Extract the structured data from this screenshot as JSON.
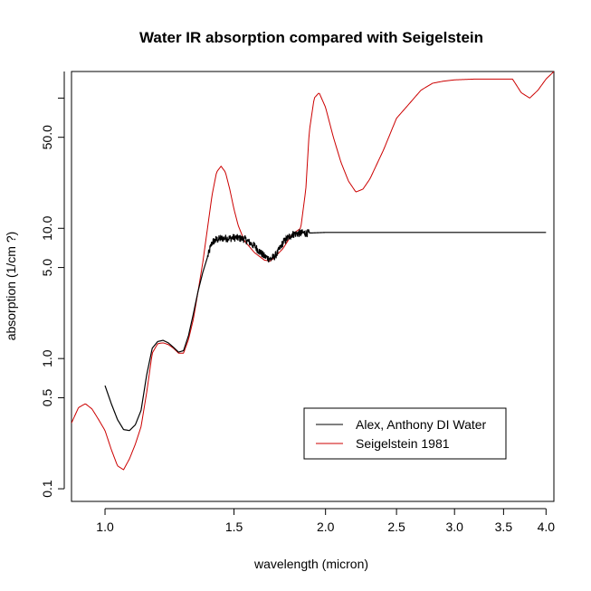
{
  "chart_data": {
    "type": "line",
    "title": "Water IR absorption compared with Seigelstein",
    "xlabel": "wavelength (micron)",
    "ylabel": "absorption (1/cm ?)",
    "x_scale": "log",
    "y_scale": "log",
    "xlim": [
      0.9,
      4.1
    ],
    "ylim": [
      0.08,
      160
    ],
    "x_ticks": [
      1.0,
      1.5,
      2.0,
      2.5,
      3.0,
      3.5,
      4.0
    ],
    "x_tick_labels": [
      "1.0",
      "1.5",
      "2.0",
      "2.5",
      "3.0",
      "3.5",
      "4.0"
    ],
    "y_ticks": [
      0.1,
      0.5,
      1.0,
      5.0,
      10.0,
      50.0
    ],
    "y_tick_labels": [
      "0.1",
      "0.5",
      "1.0",
      "5.0",
      "10.0",
      "50.0"
    ],
    "grid": false,
    "legend_position": "bottom-right",
    "series": [
      {
        "name": "Alex, Anthony DI Water",
        "color": "#000000",
        "noisy_from": 1.38,
        "x": [
          1.0,
          1.02,
          1.04,
          1.06,
          1.08,
          1.1,
          1.12,
          1.14,
          1.16,
          1.18,
          1.2,
          1.22,
          1.24,
          1.26,
          1.28,
          1.3,
          1.32,
          1.34,
          1.36,
          1.38,
          1.4,
          1.42,
          1.45,
          1.48,
          1.5,
          1.55,
          1.6,
          1.65,
          1.68,
          1.7,
          1.72,
          1.75,
          1.8,
          1.85,
          1.9,
          2.0,
          2.2,
          2.5,
          3.0,
          3.5,
          4.0
        ],
        "y": [
          0.62,
          0.45,
          0.34,
          0.285,
          0.28,
          0.31,
          0.4,
          0.75,
          1.2,
          1.35,
          1.38,
          1.32,
          1.22,
          1.12,
          1.15,
          1.5,
          2.2,
          3.3,
          4.6,
          6.0,
          7.8,
          8.2,
          8.4,
          8.4,
          8.5,
          8.3,
          7.3,
          6.1,
          5.8,
          6.0,
          6.5,
          7.8,
          9.0,
          9.2,
          9.2,
          9.3,
          9.3,
          9.3,
          9.3,
          9.3,
          9.3
        ]
      },
      {
        "name": "Seigelstein 1981",
        "color": "#cc0000",
        "x": [
          0.9,
          0.92,
          0.94,
          0.96,
          0.98,
          1.0,
          1.02,
          1.04,
          1.06,
          1.08,
          1.1,
          1.12,
          1.14,
          1.16,
          1.18,
          1.2,
          1.22,
          1.24,
          1.26,
          1.28,
          1.3,
          1.32,
          1.34,
          1.36,
          1.38,
          1.4,
          1.42,
          1.44,
          1.46,
          1.48,
          1.5,
          1.52,
          1.55,
          1.6,
          1.65,
          1.68,
          1.7,
          1.75,
          1.8,
          1.85,
          1.88,
          1.9,
          1.93,
          1.96,
          2.0,
          2.05,
          2.1,
          2.15,
          2.2,
          2.25,
          2.3,
          2.4,
          2.5,
          2.6,
          2.7,
          2.8,
          2.9,
          3.0,
          3.2,
          3.4,
          3.6,
          3.7,
          3.8,
          3.9,
          4.0,
          4.1
        ],
        "y": [
          0.32,
          0.42,
          0.45,
          0.41,
          0.34,
          0.28,
          0.2,
          0.15,
          0.14,
          0.17,
          0.22,
          0.3,
          0.55,
          1.1,
          1.3,
          1.32,
          1.28,
          1.2,
          1.1,
          1.1,
          1.4,
          2.0,
          3.3,
          5.5,
          10.0,
          18.0,
          27.0,
          30.0,
          27.0,
          20.0,
          14.0,
          10.5,
          8.0,
          6.5,
          5.7,
          5.6,
          5.9,
          7.0,
          9.0,
          10.0,
          20.0,
          55.0,
          100.0,
          110.0,
          85.0,
          50.0,
          32.0,
          23.0,
          19.0,
          20.0,
          24.0,
          40.0,
          70.0,
          90.0,
          115.0,
          130.0,
          135.0,
          138.0,
          140.0,
          140.0,
          140.0,
          110.0,
          100.0,
          115.0,
          140.0,
          160.0
        ]
      }
    ]
  }
}
